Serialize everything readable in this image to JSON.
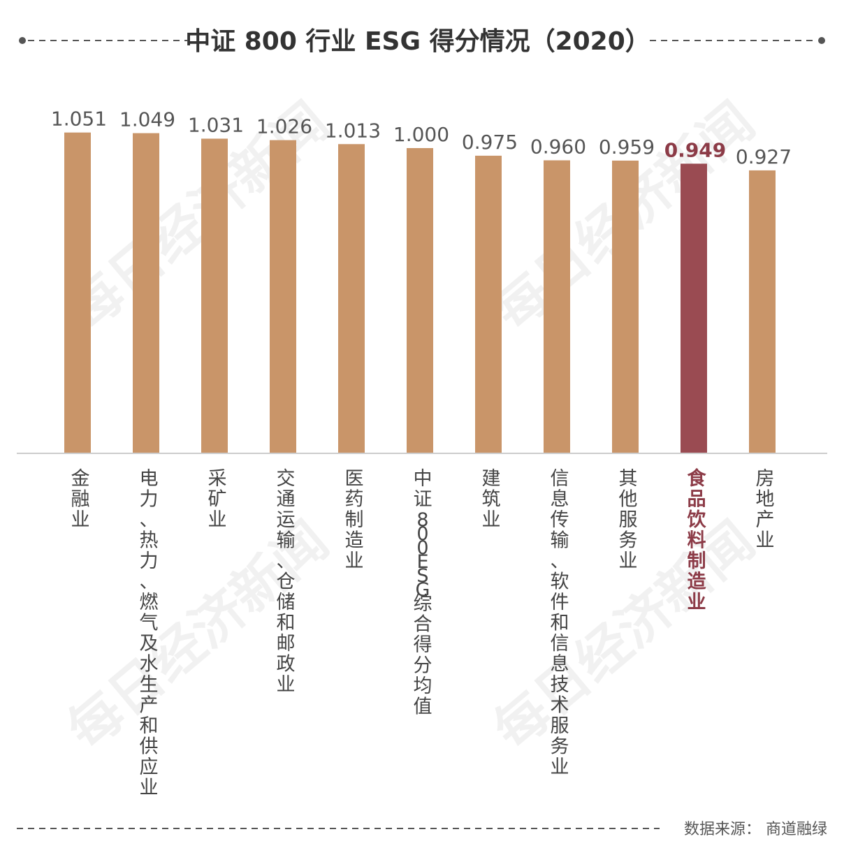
{
  "title": "中证 800 行业 ESG 得分情况（2020）",
  "source": "数据来源：  商道融绿",
  "watermark": "每日经济新闻",
  "colors": {
    "bar": "#c99569",
    "highlight_bar": "#9a4b52",
    "highlight_text": "#8c3b47",
    "axis": "#cccccc",
    "dash": "#555555"
  },
  "chart_data": {
    "type": "bar",
    "title": "中证 800 行业 ESG 得分情况（2020）",
    "categories": [
      "金融业",
      "电力、热力、燃气及水生产和供应业",
      "采矿业",
      "交通运输、仓储和邮政业",
      "医药制造业",
      "中证800ESG综合得分均值",
      "建筑业",
      "信息传输、软件和信息技术服务业",
      "其他服务业",
      "食品饮料制造业",
      "房地产业"
    ],
    "values": [
      1.051,
      1.049,
      1.031,
      1.026,
      1.013,
      1.0,
      0.975,
      0.96,
      0.959,
      0.949,
      0.927
    ],
    "value_labels": [
      "1.051",
      "1.049",
      "1.031",
      "1.026",
      "1.013",
      "1.000",
      "0.975",
      "0.960",
      "0.959",
      "0.949",
      "0.927"
    ],
    "highlight_category": "食品饮料制造业",
    "ylim": [
      0,
      1.051
    ],
    "grid": false,
    "xlabel": "",
    "ylabel": ""
  }
}
